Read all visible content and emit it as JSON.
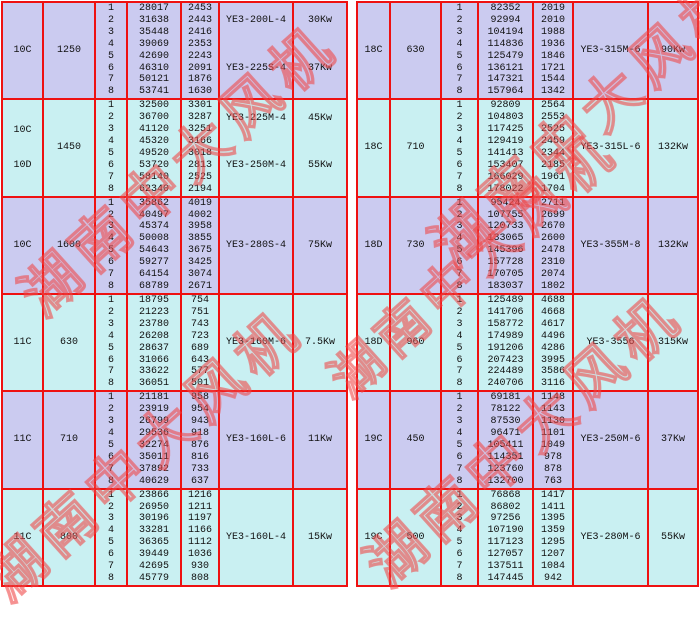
{
  "watermark": {
    "text": "湖南中大风机"
  },
  "colors": {
    "lavender": "#cbcbf0",
    "cyan": "#c9f0f2",
    "grid_red": "#ee1111",
    "watermark_red": "#ee4646"
  },
  "tables": [
    {
      "side": "left",
      "blocks": [
        {
          "model": [
            "10C"
          ],
          "speed": "1250",
          "bg": "lavender",
          "rows": [
            [
              "1",
              "28017",
              "2453"
            ],
            [
              "2",
              "31638",
              "2443"
            ],
            [
              "3",
              "35448",
              "2416"
            ],
            [
              "4",
              "39069",
              "2353"
            ],
            [
              "5",
              "42690",
              "2243"
            ],
            [
              "6",
              "46310",
              "2091"
            ],
            [
              "7",
              "50121",
              "1876"
            ],
            [
              "8",
              "53741",
              "1630"
            ]
          ],
          "motors": [
            {
              "row": 2,
              "model": "YE3-200L-4",
              "power": "30Kw"
            },
            {
              "row": 6,
              "model": "YE3-225S-4",
              "power": "37Kw"
            }
          ]
        },
        {
          "model": [
            "10C",
            "10D"
          ],
          "speed": "1450",
          "bg": "cyan",
          "rows": [
            [
              "1",
              "32500",
              "3301"
            ],
            [
              "2",
              "36700",
              "3287"
            ],
            [
              "3",
              "41120",
              "3251"
            ],
            [
              "4",
              "45320",
              "3166"
            ],
            [
              "5",
              "49520",
              "3018"
            ],
            [
              "6",
              "53720",
              "2813"
            ],
            [
              "7",
              "58140",
              "2525"
            ],
            [
              "8",
              "62340",
              "2194"
            ]
          ],
          "motors": [
            {
              "row": 2,
              "model": "YE3-225M-4",
              "power": "45Kw"
            },
            {
              "row": 6,
              "model": "YE3-250M-4",
              "power": "55Kw"
            }
          ]
        },
        {
          "model": [
            "10C"
          ],
          "speed": "1600",
          "bg": "lavender",
          "rows": [
            [
              "1",
              "35862",
              "4019"
            ],
            [
              "2",
              "40497",
              "4002"
            ],
            [
              "3",
              "45374",
              "3958"
            ],
            [
              "4",
              "50008",
              "3855"
            ],
            [
              "5",
              "54643",
              "3675"
            ],
            [
              "6",
              "59277",
              "3425"
            ],
            [
              "7",
              "64154",
              "3074"
            ],
            [
              "8",
              "68789",
              "2671"
            ]
          ],
          "motors": [
            {
              "row": null,
              "model": "YE3-280S-4",
              "power": "75Kw"
            }
          ]
        },
        {
          "model": [
            "11C"
          ],
          "speed": "630",
          "bg": "cyan",
          "rows": [
            [
              "1",
              "18795",
              "754"
            ],
            [
              "2",
              "21223",
              "751"
            ],
            [
              "3",
              "23780",
              "743"
            ],
            [
              "4",
              "26208",
              "723"
            ],
            [
              "5",
              "28637",
              "689"
            ],
            [
              "6",
              "31066",
              "643"
            ],
            [
              "7",
              "33622",
              "577"
            ],
            [
              "8",
              "36051",
              "501"
            ]
          ],
          "motors": [
            {
              "row": null,
              "model": "YE3-160M-6",
              "power": "7.5Kw"
            }
          ]
        },
        {
          "model": [
            "11C"
          ],
          "speed": "710",
          "bg": "lavender",
          "rows": [
            [
              "1",
              "21181",
              "958"
            ],
            [
              "2",
              "23919",
              "954"
            ],
            [
              "3",
              "26799",
              "943"
            ],
            [
              "4",
              "29536",
              "918"
            ],
            [
              "5",
              "32274",
              "876"
            ],
            [
              "6",
              "35011",
              "816"
            ],
            [
              "7",
              "37892",
              "733"
            ],
            [
              "8",
              "40629",
              "637"
            ]
          ],
          "motors": [
            {
              "row": null,
              "model": "YE3-160L-6",
              "power": "11Kw"
            }
          ]
        },
        {
          "model": [
            "11C"
          ],
          "speed": "800",
          "bg": "cyan",
          "rows": [
            [
              "1",
              "23866",
              "1216"
            ],
            [
              "2",
              "26950",
              "1211"
            ],
            [
              "3",
              "30196",
              "1197"
            ],
            [
              "4",
              "33281",
              "1166"
            ],
            [
              "5",
              "36365",
              "1112"
            ],
            [
              "6",
              "39449",
              "1036"
            ],
            [
              "7",
              "42695",
              "930"
            ],
            [
              "8",
              "45779",
              "808"
            ]
          ],
          "motors": [
            {
              "row": null,
              "model": "YE3-160L-4",
              "power": "15Kw"
            }
          ]
        }
      ]
    },
    {
      "side": "right",
      "blocks": [
        {
          "model": [
            "18C"
          ],
          "speed": "630",
          "bg": "lavender",
          "rows": [
            [
              "1",
              "82352",
              "2019"
            ],
            [
              "2",
              "92994",
              "2010"
            ],
            [
              "3",
              "104194",
              "1988"
            ],
            [
              "4",
              "114836",
              "1936"
            ],
            [
              "5",
              "125479",
              "1846"
            ],
            [
              "6",
              "136121",
              "1721"
            ],
            [
              "7",
              "147321",
              "1544"
            ],
            [
              "8",
              "157964",
              "1342"
            ]
          ],
          "motors": [
            {
              "row": null,
              "model": "YE3-315M-6",
              "power": "90Kw"
            }
          ]
        },
        {
          "model": [
            "18C"
          ],
          "speed": "710",
          "bg": "cyan",
          "rows": [
            [
              "1",
              "92809",
              "2564"
            ],
            [
              "2",
              "104803",
              "2553"
            ],
            [
              "3",
              "117425",
              "2525"
            ],
            [
              "4",
              "129419",
              "2459"
            ],
            [
              "5",
              "141413",
              "2344"
            ],
            [
              "6",
              "153407",
              "2185"
            ],
            [
              "7",
              "166029",
              "1961"
            ],
            [
              "8",
              "178022",
              "1704"
            ]
          ],
          "motors": [
            {
              "row": null,
              "model": "YE3-315L-6",
              "power": "132Kw"
            }
          ]
        },
        {
          "model": [
            "18D"
          ],
          "speed": "730",
          "bg": "lavender",
          "rows": [
            [
              "1",
              "95424",
              "2711"
            ],
            [
              "2",
              "107755",
              "2699"
            ],
            [
              "3",
              "120733",
              "2670"
            ],
            [
              "4",
              "133065",
              "2600"
            ],
            [
              "5",
              "145396",
              "2478"
            ],
            [
              "6",
              "157728",
              "2310"
            ],
            [
              "7",
              "170705",
              "2074"
            ],
            [
              "8",
              "183037",
              "1802"
            ]
          ],
          "motors": [
            {
              "row": null,
              "model": "YE3-355M-8",
              "power": "132Kw"
            }
          ]
        },
        {
          "model": [
            "18D"
          ],
          "speed": "960",
          "bg": "cyan",
          "rows": [
            [
              "1",
              "125489",
              "4688"
            ],
            [
              "2",
              "141706",
              "4668"
            ],
            [
              "3",
              "158772",
              "4617"
            ],
            [
              "4",
              "174989",
              "4496"
            ],
            [
              "5",
              "191206",
              "4286"
            ],
            [
              "6",
              "207423",
              "3995"
            ],
            [
              "7",
              "224489",
              "3586"
            ],
            [
              "8",
              "240706",
              "3116"
            ]
          ],
          "motors": [
            {
              "row": null,
              "model": "YE3-3556",
              "power": "315Kw"
            }
          ]
        },
        {
          "model": [
            "19C"
          ],
          "speed": "450",
          "bg": "lavender",
          "rows": [
            [
              "1",
              "69181",
              "1148"
            ],
            [
              "2",
              "78122",
              "1143"
            ],
            [
              "3",
              "87530",
              "1130"
            ],
            [
              "4",
              "96471",
              "1101"
            ],
            [
              "5",
              "105411",
              "1049"
            ],
            [
              "6",
              "114351",
              "978"
            ],
            [
              "7",
              "123760",
              "878"
            ],
            [
              "8",
              "132700",
              "763"
            ]
          ],
          "motors": [
            {
              "row": null,
              "model": "YE3-250M-6",
              "power": "37Kw"
            }
          ]
        },
        {
          "model": [
            "19C"
          ],
          "speed": "500",
          "bg": "cyan",
          "rows": [
            [
              "1",
              "76868",
              "1417"
            ],
            [
              "2",
              "86802",
              "1411"
            ],
            [
              "3",
              "97256",
              "1395"
            ],
            [
              "4",
              "107190",
              "1359"
            ],
            [
              "5",
              "117123",
              "1295"
            ],
            [
              "6",
              "127057",
              "1207"
            ],
            [
              "7",
              "137511",
              "1084"
            ],
            [
              "8",
              "147445",
              "942"
            ]
          ],
          "motors": [
            {
              "row": null,
              "model": "YE3-280M-6",
              "power": "55Kw"
            }
          ]
        }
      ]
    }
  ]
}
